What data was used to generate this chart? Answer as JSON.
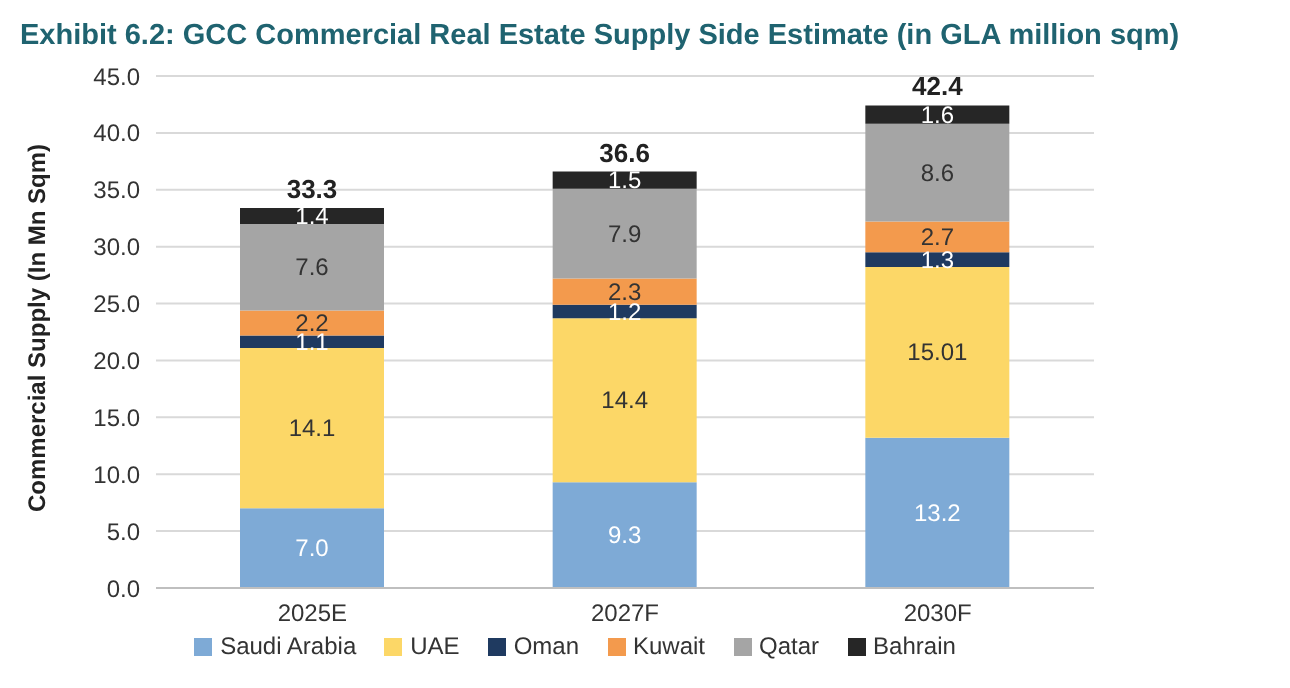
{
  "chart_data": {
    "type": "bar",
    "title": "Exhibit 6.2: GCC Commercial Real Estate Supply Side Estimate (in GLA million sqm)",
    "ylabel": "Commercial Supply (In Mn Sqm)",
    "categories": [
      "2025E",
      "2027F",
      "2030F"
    ],
    "stacked": true,
    "series": [
      {
        "name": "Saudi Arabia",
        "color": "#7eaad6",
        "values": [
          7.0,
          9.3,
          13.2
        ],
        "value_labels": [
          "7.0",
          "9.3",
          "13.2"
        ]
      },
      {
        "name": "UAE",
        "color": "#fcd767",
        "values": [
          14.1,
          14.4,
          15.01
        ],
        "value_labels": [
          "14.1",
          "14.4",
          "15.01"
        ]
      },
      {
        "name": "Oman",
        "color": "#1f3a60",
        "values": [
          1.1,
          1.2,
          1.3
        ],
        "value_labels": [
          "1.1",
          "1.2",
          "1.3"
        ]
      },
      {
        "name": "Kuwait",
        "color": "#f39a4d",
        "values": [
          2.2,
          2.3,
          2.7
        ],
        "value_labels": [
          "2.2",
          "2.3",
          "2.7"
        ]
      },
      {
        "name": "Qatar",
        "color": "#a5a5a5",
        "values": [
          7.6,
          7.9,
          8.6
        ],
        "value_labels": [
          "7.6",
          "7.9",
          "8.6"
        ]
      },
      {
        "name": "Bahrain",
        "color": "#262626",
        "values": [
          1.4,
          1.5,
          1.6
        ],
        "value_labels": [
          "1.4",
          "1.5",
          "1.6"
        ]
      }
    ],
    "totals": [
      "33.3",
      "36.6",
      "42.4"
    ],
    "ylim": [
      0,
      45
    ],
    "yticks": [
      {
        "value": 0,
        "label": "0.0"
      },
      {
        "value": 5,
        "label": "5.0"
      },
      {
        "value": 10,
        "label": "10.0"
      },
      {
        "value": 15,
        "label": "15.0"
      },
      {
        "value": 20,
        "label": "20.0"
      },
      {
        "value": 25,
        "label": "25.0"
      },
      {
        "value": 30,
        "label": "30.0"
      },
      {
        "value": 35,
        "label": "35.0"
      },
      {
        "value": 40,
        "label": "40.0"
      },
      {
        "value": 45,
        "label": "45.0"
      }
    ],
    "grid": "y",
    "legend": "bottom"
  }
}
